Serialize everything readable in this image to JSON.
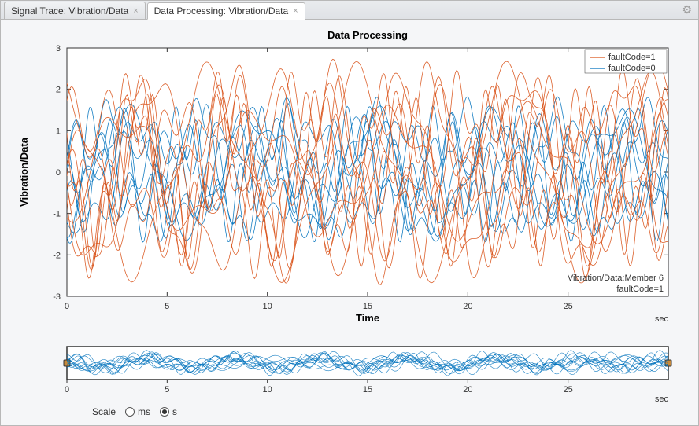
{
  "tabs": [
    {
      "label": "Signal Trace: Vibration/Data",
      "active": false
    },
    {
      "label": "Data Processing: Vibration/Data",
      "active": true
    }
  ],
  "gear_icon": "gear",
  "main_chart": {
    "type": "line",
    "title": "Data Processing",
    "xlabel": "Time",
    "ylabel": "Vibration/Data",
    "x_unit": "sec",
    "xlim": [
      0,
      30
    ],
    "ylim": [
      -3,
      3
    ],
    "xtick_step": 5,
    "ytick_step": 1,
    "xticks": [
      0,
      5,
      10,
      15,
      20,
      25
    ],
    "yticks": [
      -3,
      -2,
      -1,
      0,
      1,
      2,
      3
    ],
    "background_color": "#ffffff",
    "axis_color": "#333333",
    "grid_on": false,
    "series": [
      {
        "label": "faultCode=1",
        "color": "#d95319",
        "line_width": 0.8,
        "n_traces": 10,
        "amplitude": [
          1.6,
          2.8
        ],
        "freq_range": [
          0.8,
          1.6
        ],
        "phase_jitter": 6.28
      },
      {
        "label": "faultCode=0",
        "color": "#0072bd",
        "line_width": 0.8,
        "n_traces": 8,
        "amplitude": [
          1.2,
          1.9
        ],
        "freq_range": [
          1.0,
          1.5
        ],
        "phase_jitter": 6.28
      }
    ],
    "legend": {
      "position": "top-right",
      "items": [
        "faultCode=1",
        "faultCode=0"
      ],
      "fontsize": 11
    },
    "annotation": {
      "lines": [
        "Vibration/Data:Member 6",
        "faultCode=1"
      ],
      "position": "bottom-right",
      "fontsize": 11,
      "color": "#333333"
    }
  },
  "overview_chart": {
    "type": "line",
    "xlim": [
      0,
      30
    ],
    "ylim": [
      -2,
      2
    ],
    "xticks": [
      0,
      5,
      10,
      15,
      20,
      25
    ],
    "x_unit": "sec",
    "background_color": "#ffffff",
    "axis_color": "#333333",
    "series_color": "#0072bd",
    "line_width": 0.6,
    "n_traces": 12,
    "handle_color": "#c88a3a",
    "handle_size": 8
  },
  "scale_control": {
    "label": "Scale",
    "options": [
      "ms",
      "s"
    ],
    "selected": "s"
  }
}
